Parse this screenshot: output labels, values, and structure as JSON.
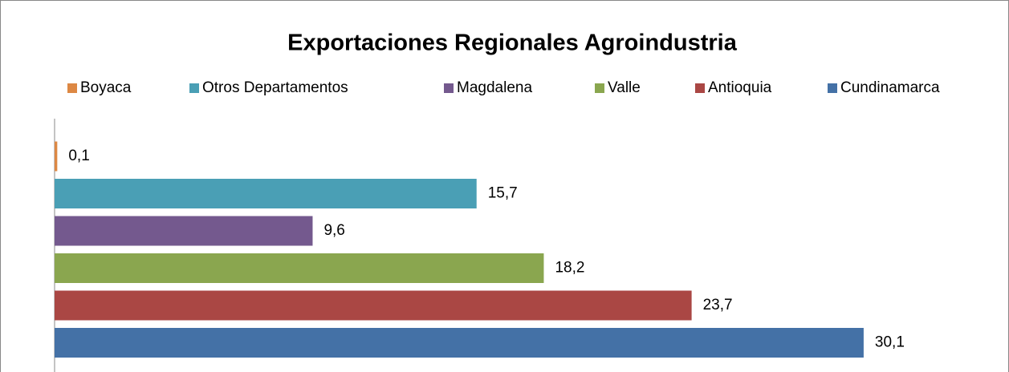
{
  "chart_data": {
    "type": "bar",
    "orientation": "horizontal",
    "title": "Exportaciones Regionales Agroindustria",
    "series": [
      {
        "name": "Boyaca",
        "color": "#dd8844",
        "values": [
          0.1
        ],
        "value_labels": [
          "0,1"
        ]
      },
      {
        "name": "Otros Departamentos",
        "color": "#4a9fb5",
        "values": [
          15.7
        ],
        "value_labels": [
          "15,7"
        ]
      },
      {
        "name": "Magdalena",
        "color": "#74598e",
        "values": [
          9.6
        ],
        "value_labels": [
          "9,6"
        ]
      },
      {
        "name": "Valle",
        "color": "#8aa64f",
        "values": [
          18.2
        ],
        "value_labels": [
          "18,2"
        ]
      },
      {
        "name": "Antioquia",
        "color": "#aa4744",
        "values": [
          23.7
        ],
        "value_labels": [
          "23,7"
        ]
      },
      {
        "name": "Cundinamarca",
        "color": "#4471a6",
        "values": [
          30.1
        ],
        "value_labels": [
          "30,1"
        ]
      }
    ],
    "xlim": [
      0,
      35
    ],
    "legend": "top"
  }
}
